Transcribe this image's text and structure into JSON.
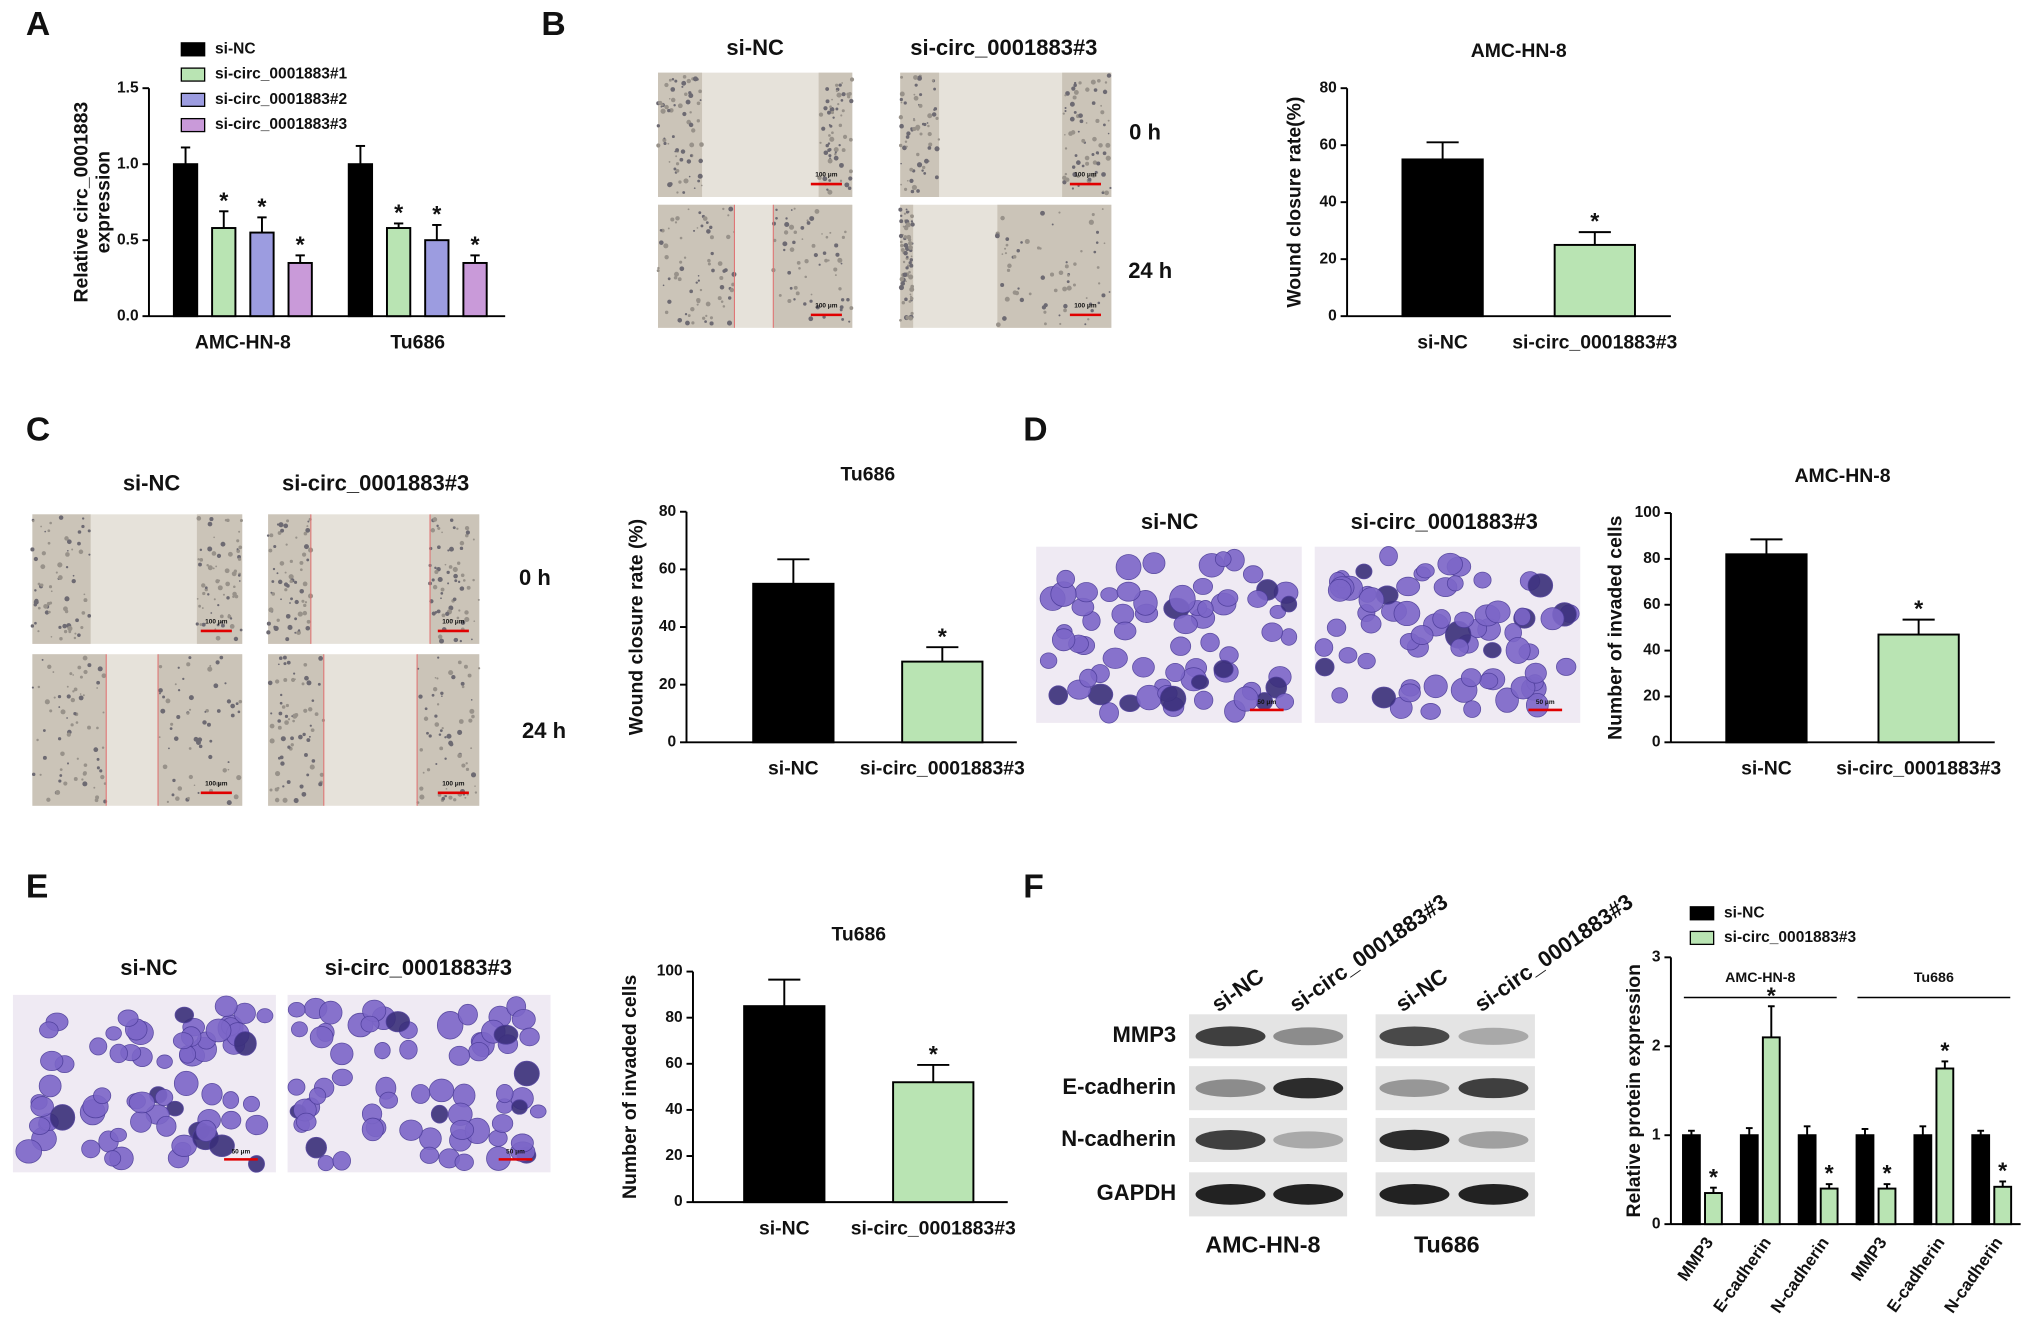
{
  "panel_letters": [
    "A",
    "B",
    "C",
    "D",
    "E",
    "F"
  ],
  "wound_B": {
    "columns": [
      "si-NC",
      "si-circ_0001883#3"
    ],
    "rows": [
      "0 h",
      "24 h"
    ],
    "scale_bar": "100 μm"
  },
  "wound_C": {
    "columns": [
      "si-NC",
      "si-circ_0001883#3"
    ],
    "rows": [
      "0 h",
      "24 h"
    ],
    "scale_bar": "100 μm"
  },
  "invasion_D": {
    "columns": [
      "si-NC",
      "si-circ_0001883#3"
    ],
    "scale_bar": "50 μm"
  },
  "invasion_E": {
    "columns": [
      "si-NC",
      "si-circ_0001883#3"
    ],
    "scale_bar": "50 μm"
  },
  "blot_F": {
    "lanes": [
      "si-NC",
      "si-circ_0001883#3",
      "si-NC",
      "si-circ_0001883#3"
    ],
    "proteins": [
      "MMP3",
      "E-cadherin",
      "N-cadherin",
      "GAPDH"
    ],
    "cell_lines": [
      "AMC-HN-8",
      "Tu686"
    ]
  },
  "chart_data": [
    {
      "type": "bar",
      "ylabel": [
        "Relative circ_0001883",
        "expression"
      ],
      "categories": [
        "AMC-HN-8",
        "Tu686"
      ],
      "series": [
        {
          "name": "si-NC",
          "color": "#000000",
          "values": [
            1.0,
            1.0
          ],
          "errors": [
            0.11,
            0.12
          ]
        },
        {
          "name": "si-circ_0001883#1",
          "color": "#b9e4b3",
          "values": [
            0.58,
            0.58
          ],
          "errors": [
            0.11,
            0.03
          ],
          "labels": [
            "*",
            "*"
          ]
        },
        {
          "name": "si-circ_0001883#2",
          "color": "#9c9ce0",
          "values": [
            0.55,
            0.5
          ],
          "errors": [
            0.1,
            0.1
          ],
          "labels": [
            "*",
            "*"
          ]
        },
        {
          "name": "si-circ_0001883#3",
          "color": "#c99ad9",
          "values": [
            0.35,
            0.35
          ],
          "errors": [
            0.05,
            0.05
          ],
          "labels": [
            "*",
            "*"
          ]
        }
      ],
      "ylim": [
        0,
        1.5
      ],
      "yticks": [
        {
          "value": 0,
          "label": "0.0"
        },
        0.5,
        {
          "value": 1,
          "label": "1.0"
        },
        1.5
      ],
      "legend": "top-left"
    },
    {
      "type": "bar",
      "title": "AMC-HN-8",
      "ylabel": "Wound closure rate(%)",
      "categories": [
        "si-NC",
        "si-circ_0001883#3"
      ],
      "values": [
        55,
        25
      ],
      "errors": [
        6,
        4.5
      ],
      "colors": [
        "#000000",
        "#b9e4b3"
      ],
      "labels": [
        null,
        "*"
      ],
      "ylim": [
        0,
        80
      ],
      "yticks": [
        0,
        20,
        40,
        60,
        80
      ]
    },
    {
      "type": "bar",
      "title": "Tu686",
      "ylabel": "Wound closure rate (%)",
      "categories": [
        "si-NC",
        "si-circ_0001883#3"
      ],
      "values": [
        55,
        28
      ],
      "errors": [
        8.5,
        5
      ],
      "colors": [
        "#000000",
        "#b9e4b3"
      ],
      "labels": [
        null,
        "*"
      ],
      "ylim": [
        0,
        80
      ],
      "yticks": [
        0,
        20,
        40,
        60,
        80
      ]
    },
    {
      "type": "bar",
      "title": "AMC-HN-8",
      "ylabel": "Number of invaded cells",
      "categories": [
        "si-NC",
        "si-circ_0001883#3"
      ],
      "values": [
        82,
        47
      ],
      "errors": [
        6.5,
        6.5
      ],
      "colors": [
        "#000000",
        "#b9e4b3"
      ],
      "labels": [
        null,
        "*"
      ],
      "ylim": [
        0,
        100
      ],
      "yticks": [
        0,
        20,
        40,
        60,
        80,
        100
      ]
    },
    {
      "type": "bar",
      "title": "Tu686",
      "ylabel": "Number of invaded cells",
      "categories": [
        "si-NC",
        "si-circ_0001883#3"
      ],
      "values": [
        85,
        52
      ],
      "errors": [
        11.5,
        7.5
      ],
      "colors": [
        "#000000",
        "#b9e4b3"
      ],
      "labels": [
        null,
        "*"
      ],
      "ylim": [
        0,
        100
      ],
      "yticks": [
        0,
        20,
        40,
        60,
        80,
        100
      ]
    },
    {
      "type": "bar",
      "ylabel": "Relative protein expression",
      "categories": [
        "MMP3",
        "E-cadherin",
        "N-cadherin",
        "MMP3",
        "E-cadherin",
        "N-cadherin"
      ],
      "group_labels": [
        "AMC-HN-8",
        "Tu686"
      ],
      "series": [
        {
          "name": "si-NC",
          "color": "#000000",
          "values": [
            1,
            1,
            1,
            1,
            1,
            1
          ],
          "errors": [
            0.05,
            0.08,
            0.1,
            0.07,
            0.1,
            0.05
          ]
        },
        {
          "name": "si-circ_0001883#3",
          "color": "#b9e4b3",
          "values": [
            0.35,
            2.1,
            0.4,
            0.4,
            1.75,
            0.42
          ],
          "errors": [
            0.06,
            0.35,
            0.05,
            0.05,
            0.08,
            0.06
          ],
          "labels": [
            "*",
            "*",
            "*",
            "*",
            "*",
            "*"
          ]
        }
      ],
      "ylim": [
        0,
        3
      ],
      "yticks": [
        0,
        1,
        2,
        3
      ],
      "legend": "top-left"
    }
  ]
}
